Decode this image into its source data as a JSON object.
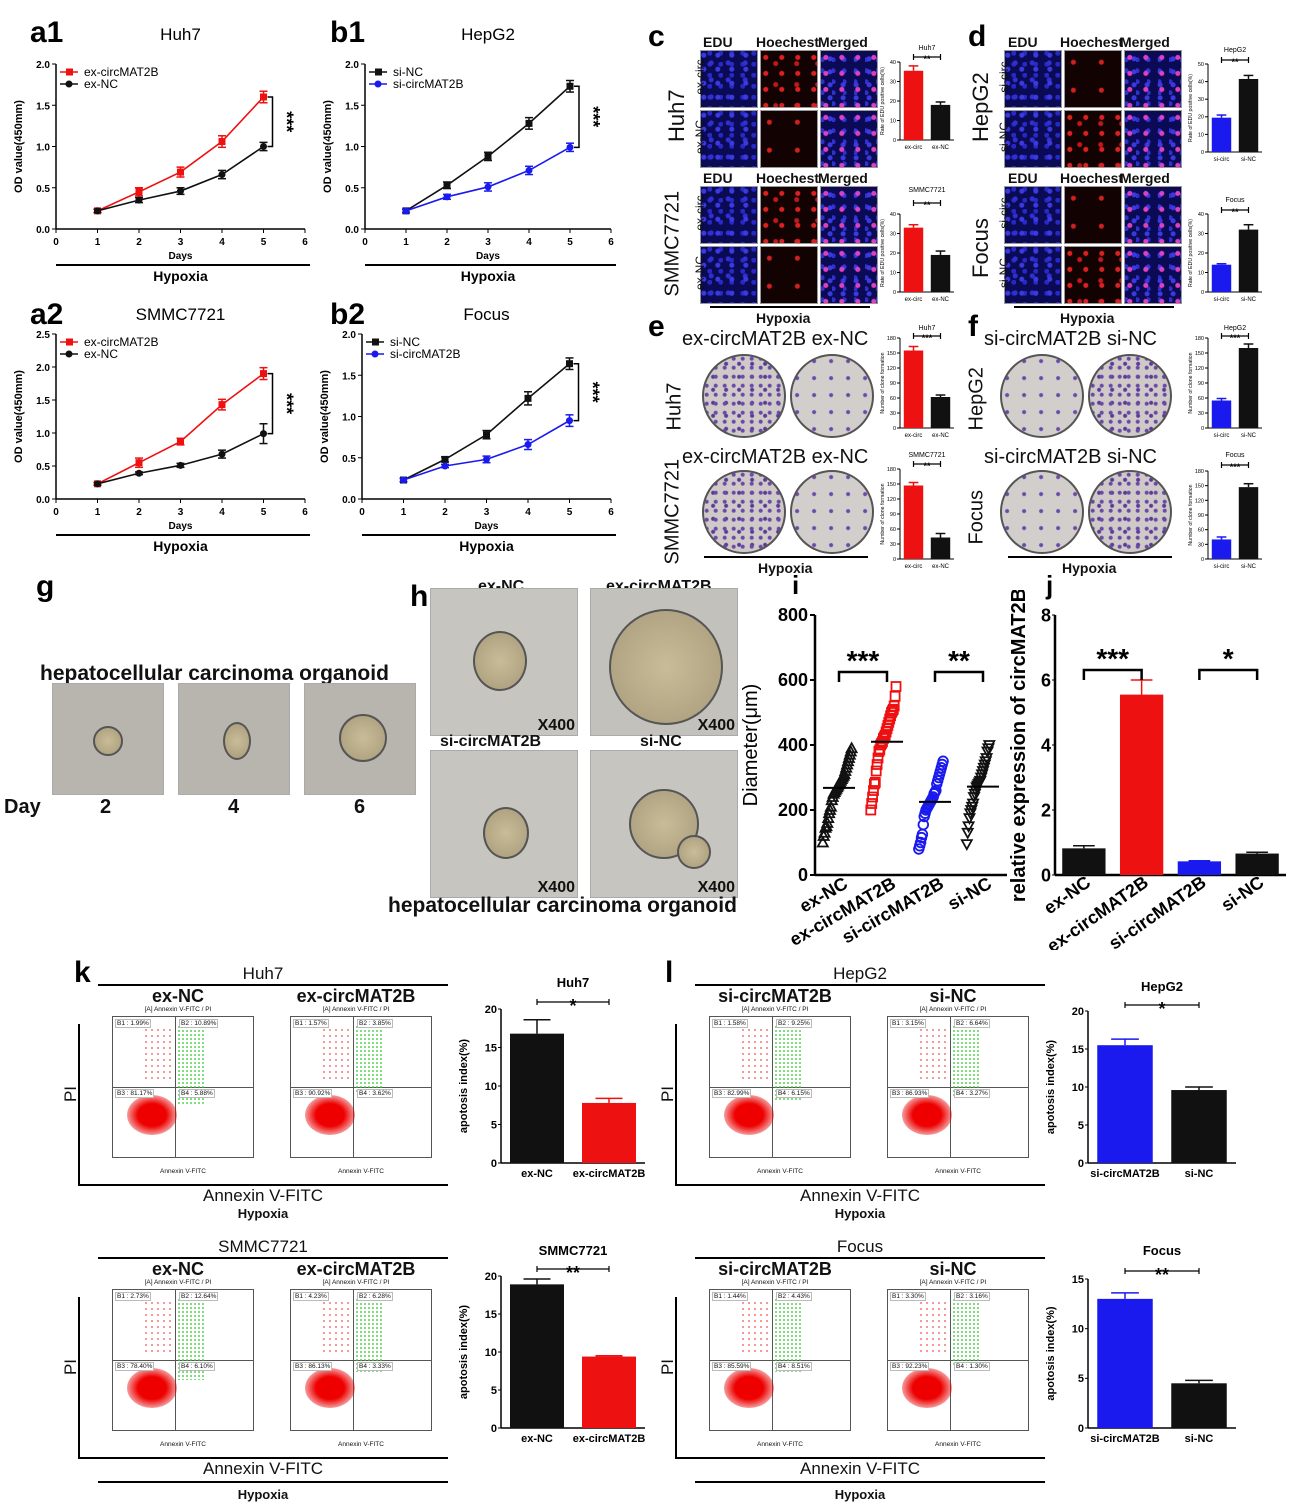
{
  "panels": {
    "a1": {
      "letter": "a1"
    },
    "b1": {
      "letter": "b1"
    },
    "a2": {
      "letter": "a2"
    },
    "b2": {
      "letter": "b2"
    },
    "c": {
      "letter": "c",
      "channels": [
        "EDU",
        "Hoechest",
        "Merged"
      ],
      "rows": [
        {
          "cell": "Huh7",
          "groups": [
            "ex-circ",
            "ex-NC"
          ]
        },
        {
          "cell": "SMMC7721",
          "groups": [
            "ex-circ",
            "ex-NC"
          ]
        }
      ],
      "footer": "Hypoxia"
    },
    "d": {
      "letter": "d",
      "channels": [
        "EDU",
        "Hoechest",
        "Merged"
      ],
      "rows": [
        {
          "cell": "HepG2",
          "groups": [
            "si-circ",
            "si-NC"
          ]
        },
        {
          "cell": "Focus",
          "groups": [
            "si-circ",
            "si-NC"
          ]
        }
      ],
      "footer": "Hypoxia"
    },
    "e": {
      "letter": "e",
      "rows": [
        {
          "cell": "Huh7",
          "groups": [
            "ex-circMAT2B",
            "ex-NC"
          ]
        },
        {
          "cell": "SMMC7721",
          "groups": [
            "ex-circMAT2B",
            "ex-NC"
          ]
        }
      ],
      "footer": "Hypoxia"
    },
    "f": {
      "letter": "f",
      "rows": [
        {
          "cell": "HepG2",
          "groups": [
            "si-circMAT2B",
            "si-NC"
          ]
        },
        {
          "cell": "Focus",
          "groups": [
            "si-circMAT2B",
            "si-NC"
          ]
        }
      ],
      "footer": "Hypoxia"
    },
    "g": {
      "letter": "g",
      "title": "hepatocellular carcinoma organoid",
      "day_label": "Day",
      "days": [
        "2",
        "4",
        "6"
      ]
    },
    "h": {
      "letter": "h",
      "groups": [
        "ex-NC",
        "ex-circMAT2B",
        "si-circMAT2B",
        "si-NC"
      ],
      "magnification": "X400",
      "footer": "hepatocellular carcinoma organoid"
    },
    "i": {
      "letter": "i"
    },
    "j": {
      "letter": "j"
    },
    "k": {
      "letter": "k",
      "footer": "Hypoxia",
      "xaxis": "Annexin V-FITC",
      "yaxis": "PI",
      "plot_title": "[A] Annexin V-FITC / PI",
      "plot_xlabel": "Annexin V-FITC",
      "blocks": [
        {
          "cell": "Huh7",
          "plots": [
            {
              "group": "ex-NC",
              "B1": "B1 : 1.99%",
              "B2": "B2 : 10.89%",
              "B3": "B3 : 81.17%",
              "B4": "B4 : 5.88%"
            },
            {
              "group": "ex-circMAT2B",
              "B1": "B1 : 1.57%",
              "B2": "B2 : 3.85%",
              "B3": "B3 : 90.92%",
              "B4": "B4 : 3.62%"
            }
          ]
        },
        {
          "cell": "SMMC7721",
          "plots": [
            {
              "group": "ex-NC",
              "B1": "B1 : 2.73%",
              "B2": "B2 : 12.64%",
              "B3": "B3 : 78.40%",
              "B4": "B4 : 6.10%"
            },
            {
              "group": "ex-circMAT2B",
              "B1": "B1 : 4.23%",
              "B2": "B2 : 6.28%",
              "B3": "B3 : 86.13%",
              "B4": "B4 : 3.33%"
            }
          ]
        }
      ]
    },
    "l": {
      "letter": "l",
      "footer": "Hypoxia",
      "xaxis": "Annexin V-FITC",
      "yaxis": "PI",
      "plot_title": "[A] Annexin V-FITC / PI",
      "plot_xlabel": "Annexin V-FITC",
      "blocks": [
        {
          "cell": "HepG2",
          "plots": [
            {
              "group": "si-circMAT2B",
              "B1": "B1 : 1.58%",
              "B2": "B2 : 9.25%",
              "B3": "B3 : 82.99%",
              "B4": "B4 : 6.15%"
            },
            {
              "group": "si-NC",
              "B1": "B1 : 3.15%",
              "B2": "B2 : 6.64%",
              "B3": "B3 : 86.93%",
              "B4": "B4 : 3.27%"
            }
          ]
        },
        {
          "cell": "Focus",
          "plots": [
            {
              "group": "si-circMAT2B",
              "B1": "B1 : 1.44%",
              "B2": "B2 : 4.43%",
              "B3": "B3 : 85.59%",
              "B4": "B4 : 8.51%"
            },
            {
              "group": "si-NC",
              "B1": "B1 : 3.30%",
              "B2": "B2 : 3.16%",
              "B3": "B3 : 92.23%",
              "B4": "B4 : 1.30%"
            }
          ]
        }
      ]
    }
  },
  "colors": {
    "red": "#ee1111",
    "blue": "#1a1aee",
    "black": "#111111"
  },
  "chart_data": [
    {
      "id": "a1",
      "type": "line",
      "title": "Huh7",
      "xlabel": "Days",
      "ylabel": "OD value(450mm)",
      "footer": "Hypoxia",
      "x": [
        1,
        2,
        3,
        4,
        5
      ],
      "xlim": [
        0,
        6
      ],
      "ylim": [
        0,
        2.0
      ],
      "yticks": [
        0.0,
        0.5,
        1.0,
        1.5,
        2.0
      ],
      "xticks": [
        0,
        1,
        2,
        3,
        4,
        5,
        6
      ],
      "legend": "top-left",
      "significance": "***",
      "series": [
        {
          "name": "ex-circMAT2B",
          "color": "#ee1111",
          "marker": "square",
          "values": [
            0.22,
            0.45,
            0.69,
            1.06,
            1.6
          ],
          "errors": [
            0.02,
            0.05,
            0.06,
            0.07,
            0.07
          ]
        },
        {
          "name": "ex-NC",
          "color": "#111111",
          "marker": "circle",
          "values": [
            0.22,
            0.35,
            0.46,
            0.66,
            1.0
          ],
          "errors": [
            0.02,
            0.03,
            0.04,
            0.05,
            0.05
          ]
        }
      ]
    },
    {
      "id": "b1",
      "type": "line",
      "title": "HepG2",
      "xlabel": "Days",
      "ylabel": "OD value(450mm)",
      "footer": "Hypoxia",
      "x": [
        1,
        2,
        3,
        4,
        5
      ],
      "xlim": [
        0,
        6
      ],
      "ylim": [
        0,
        2.0
      ],
      "yticks": [
        0.0,
        0.5,
        1.0,
        1.5,
        2.0
      ],
      "xticks": [
        0,
        1,
        2,
        3,
        4,
        5,
        6
      ],
      "legend": "top-left",
      "significance": "***",
      "series": [
        {
          "name": "si-NC",
          "color": "#111111",
          "marker": "square",
          "values": [
            0.22,
            0.53,
            0.88,
            1.28,
            1.73
          ],
          "errors": [
            0.02,
            0.04,
            0.05,
            0.07,
            0.07
          ]
        },
        {
          "name": "si-circMAT2B",
          "color": "#1a1aee",
          "marker": "circle",
          "values": [
            0.22,
            0.39,
            0.51,
            0.71,
            0.99
          ],
          "errors": [
            0.02,
            0.03,
            0.05,
            0.05,
            0.05
          ]
        }
      ]
    },
    {
      "id": "a2",
      "type": "line",
      "title": "SMMC7721",
      "xlabel": "Days",
      "ylabel": "OD value(450mm)",
      "footer": "Hypoxia",
      "x": [
        1,
        2,
        3,
        4,
        5
      ],
      "xlim": [
        0,
        6
      ],
      "ylim": [
        0,
        2.5
      ],
      "yticks": [
        0.0,
        0.5,
        1.0,
        1.5,
        2.0,
        2.5
      ],
      "xticks": [
        0,
        1,
        2,
        3,
        4,
        5,
        6
      ],
      "legend": "top-left",
      "significance": "***",
      "series": [
        {
          "name": "ex-circMAT2B",
          "color": "#ee1111",
          "marker": "square",
          "values": [
            0.23,
            0.55,
            0.87,
            1.43,
            1.9
          ],
          "errors": [
            0.02,
            0.07,
            0.05,
            0.08,
            0.09
          ]
        },
        {
          "name": "ex-NC",
          "color": "#111111",
          "marker": "circle",
          "values": [
            0.23,
            0.39,
            0.51,
            0.68,
            0.99
          ],
          "errors": [
            0.02,
            0.02,
            0.03,
            0.06,
            0.15
          ]
        }
      ]
    },
    {
      "id": "b2",
      "type": "line",
      "title": "Focus",
      "xlabel": "Days",
      "ylabel": "OD value(450mm)",
      "footer": "Hypoxia",
      "x": [
        1,
        2,
        3,
        4,
        5
      ],
      "xlim": [
        0,
        6
      ],
      "ylim": [
        0,
        2.0
      ],
      "yticks": [
        0.0,
        0.5,
        1.0,
        1.5,
        2.0
      ],
      "xticks": [
        0,
        1,
        2,
        3,
        4,
        5,
        6
      ],
      "legend": "top-left",
      "significance": "***",
      "series": [
        {
          "name": "si-NC",
          "color": "#111111",
          "marker": "square",
          "values": [
            0.23,
            0.48,
            0.78,
            1.22,
            1.64
          ],
          "errors": [
            0.02,
            0.03,
            0.05,
            0.08,
            0.07
          ]
        },
        {
          "name": "si-circMAT2B",
          "color": "#1a1aee",
          "marker": "circle",
          "values": [
            0.23,
            0.4,
            0.48,
            0.66,
            0.95
          ],
          "errors": [
            0.02,
            0.02,
            0.04,
            0.06,
            0.07
          ]
        }
      ]
    },
    {
      "id": "c1",
      "type": "bar",
      "title": "Huh7",
      "ylabel": "Rate of EDU positive cells(%)",
      "categories": [
        "ex-circ",
        "ex-NC"
      ],
      "values": [
        35.5,
        18.0
      ],
      "errors": [
        2.5,
        1.5
      ],
      "colors": [
        "#ee1111",
        "#111111"
      ],
      "ylim": [
        0,
        40
      ],
      "yticks": [
        0,
        10,
        20,
        30,
        40
      ],
      "significance": "**"
    },
    {
      "id": "c2",
      "type": "bar",
      "title": "SMMC7721",
      "ylabel": "Rate of EDU positive cells(%)",
      "categories": [
        "ex-circ",
        "ex-NC"
      ],
      "values": [
        33.0,
        19.0
      ],
      "errors": [
        1.5,
        2.0
      ],
      "colors": [
        "#ee1111",
        "#111111"
      ],
      "ylim": [
        0,
        40
      ],
      "yticks": [
        0,
        10,
        20,
        30,
        40
      ],
      "significance": "**"
    },
    {
      "id": "d1",
      "type": "bar",
      "title": "HepG2",
      "ylabel": "Rate of EDU positive cells(%)",
      "categories": [
        "si-circ",
        "si-NC"
      ],
      "values": [
        19.5,
        41.5
      ],
      "errors": [
        1.5,
        2.0
      ],
      "colors": [
        "#1a1aee",
        "#111111"
      ],
      "ylim": [
        0,
        50
      ],
      "yticks": [
        0,
        10,
        20,
        30,
        40,
        50
      ],
      "significance": "**"
    },
    {
      "id": "d2",
      "type": "bar",
      "title": "Focus",
      "ylabel": "Rate of EDU positive cells(%)",
      "categories": [
        "si-circ",
        "si-NC"
      ],
      "values": [
        14.0,
        32.0
      ],
      "errors": [
        0.5,
        2.5
      ],
      "colors": [
        "#1a1aee",
        "#111111"
      ],
      "ylim": [
        0,
        40
      ],
      "yticks": [
        0,
        10,
        20,
        30,
        40
      ],
      "significance": "**"
    },
    {
      "id": "e1",
      "type": "bar",
      "title": "Huh7",
      "ylabel": "Number of clone formation",
      "categories": [
        "ex-circ",
        "ex-NC"
      ],
      "values": [
        155,
        62
      ],
      "errors": [
        8,
        4
      ],
      "colors": [
        "#ee1111",
        "#111111"
      ],
      "ylim": [
        0,
        180
      ],
      "yticks": [
        0,
        30,
        60,
        90,
        120,
        150,
        180
      ],
      "significance": "***"
    },
    {
      "id": "e2",
      "type": "bar",
      "title": "SMMC7721",
      "ylabel": "Number of clone formation",
      "categories": [
        "ex-circ",
        "ex-NC"
      ],
      "values": [
        147,
        43
      ],
      "errors": [
        6,
        8
      ],
      "colors": [
        "#ee1111",
        "#111111"
      ],
      "ylim": [
        0,
        180
      ],
      "yticks": [
        0,
        30,
        60,
        90,
        120,
        150,
        180
      ],
      "significance": "**"
    },
    {
      "id": "f1",
      "type": "bar",
      "title": "HepG2",
      "ylabel": "Number of clone formation",
      "categories": [
        "si-circ",
        "si-NC"
      ],
      "values": [
        55,
        160
      ],
      "errors": [
        4,
        8
      ],
      "colors": [
        "#1a1aee",
        "#111111"
      ],
      "ylim": [
        0,
        180
      ],
      "yticks": [
        0,
        30,
        60,
        90,
        120,
        150,
        180
      ],
      "significance": "***"
    },
    {
      "id": "f2",
      "type": "bar",
      "title": "Focus",
      "ylabel": "Number of clone formation",
      "categories": [
        "si-circ",
        "si-NC"
      ],
      "values": [
        40,
        147
      ],
      "errors": [
        5,
        7
      ],
      "colors": [
        "#1a1aee",
        "#111111"
      ],
      "ylim": [
        0,
        180
      ],
      "yticks": [
        0,
        30,
        60,
        90,
        120,
        150,
        180
      ],
      "significance": "***"
    },
    {
      "id": "i",
      "type": "scatter",
      "title": "",
      "ylabel": "Diameter(μm)",
      "categories": [
        "ex-NC",
        "ex-circMAT2B",
        "si-circMAT2B",
        "si-NC"
      ],
      "ylim": [
        0,
        800
      ],
      "yticks": [
        0,
        200,
        400,
        600,
        800
      ],
      "markers": [
        "triangle-up",
        "square",
        "circle",
        "triangle-down"
      ],
      "colors": [
        "#111111",
        "#ee1111",
        "#1a1aee",
        "#111111"
      ],
      "means": [
        268,
        410,
        225,
        272
      ],
      "points": [
        [
          100,
          120,
          130,
          145,
          150,
          160,
          175,
          190,
          200,
          210,
          230,
          240,
          250,
          255,
          260,
          265,
          270,
          275,
          280,
          285,
          290,
          295,
          300,
          305,
          310,
          320,
          330,
          340,
          350,
          360,
          370,
          380,
          390
        ],
        [
          200,
          220,
          240,
          260,
          280,
          285,
          320,
          340,
          360,
          380,
          385,
          400,
          405,
          410,
          420,
          425,
          430,
          440,
          450,
          460,
          470,
          480,
          490,
          500,
          505,
          510,
          520,
          550,
          580
        ],
        [
          80,
          90,
          100,
          115,
          125,
          155,
          180,
          190,
          200,
          205,
          210,
          215,
          220,
          225,
          230,
          235,
          240,
          250,
          255,
          260,
          280,
          290,
          300,
          310,
          320,
          330,
          340,
          350
        ],
        [
          95,
          130,
          150,
          175,
          190,
          200,
          210,
          220,
          240,
          250,
          260,
          270,
          275,
          280,
          285,
          290,
          300,
          310,
          320,
          330,
          340,
          350,
          360,
          380,
          390,
          400
        ]
      ],
      "significance": [
        {
          "pair": [
            0,
            1
          ],
          "label": "***"
        },
        {
          "pair": [
            2,
            3
          ],
          "label": "**"
        }
      ]
    },
    {
      "id": "j",
      "type": "bar",
      "title": "",
      "ylabel": "relative expression of circMAT2B",
      "categories": [
        "ex-NC",
        "ex-circMAT2B",
        "si-circMAT2B",
        "si-NC"
      ],
      "values": [
        0.82,
        5.55,
        0.42,
        0.66
      ],
      "errors": [
        0.08,
        0.45,
        0.02,
        0.04
      ],
      "colors": [
        "#111111",
        "#ee1111",
        "#1a1aee",
        "#111111"
      ],
      "ylim": [
        0,
        8
      ],
      "yticks": [
        0,
        2,
        4,
        6,
        8
      ],
      "significance": [
        {
          "pair": [
            0,
            1
          ],
          "label": "***"
        },
        {
          "pair": [
            2,
            3
          ],
          "label": "*"
        }
      ]
    },
    {
      "id": "k1",
      "type": "bar",
      "title": "Huh7",
      "ylabel": "apotosis index(%)",
      "categories": [
        "ex-NC",
        "ex-circMAT2B"
      ],
      "values": [
        16.8,
        7.8
      ],
      "errors": [
        1.8,
        0.6
      ],
      "colors": [
        "#111111",
        "#ee1111"
      ],
      "ylim": [
        0,
        20
      ],
      "yticks": [
        0,
        5,
        10,
        15,
        20
      ],
      "significance": "*"
    },
    {
      "id": "k2",
      "type": "bar",
      "title": "SMMC7721",
      "ylabel": "apotosis index(%)",
      "categories": [
        "ex-NC",
        "ex-circMAT2B"
      ],
      "values": [
        18.9,
        9.4
      ],
      "errors": [
        0.7,
        0.1
      ],
      "colors": [
        "#111111",
        "#ee1111"
      ],
      "ylim": [
        0,
        20
      ],
      "yticks": [
        0,
        5,
        10,
        15,
        20
      ],
      "significance": "**"
    },
    {
      "id": "l1",
      "type": "bar",
      "title": "HepG2",
      "ylabel": "apotosis index(%)",
      "categories": [
        "si-circMAT2B",
        "si-NC"
      ],
      "values": [
        15.5,
        9.6
      ],
      "errors": [
        0.8,
        0.4
      ],
      "colors": [
        "#1a1aee",
        "#111111"
      ],
      "ylim": [
        0,
        20
      ],
      "yticks": [
        0,
        5,
        10,
        15,
        20
      ],
      "significance": "*"
    },
    {
      "id": "l2",
      "type": "bar",
      "title": "Focus",
      "ylabel": "apotosis index(%)",
      "categories": [
        "si-circMAT2B",
        "si-NC"
      ],
      "values": [
        13.0,
        4.5
      ],
      "errors": [
        0.6,
        0.3
      ],
      "colors": [
        "#1a1aee",
        "#111111"
      ],
      "ylim": [
        0,
        15
      ],
      "yticks": [
        0,
        5,
        10,
        15
      ],
      "significance": "**"
    }
  ]
}
